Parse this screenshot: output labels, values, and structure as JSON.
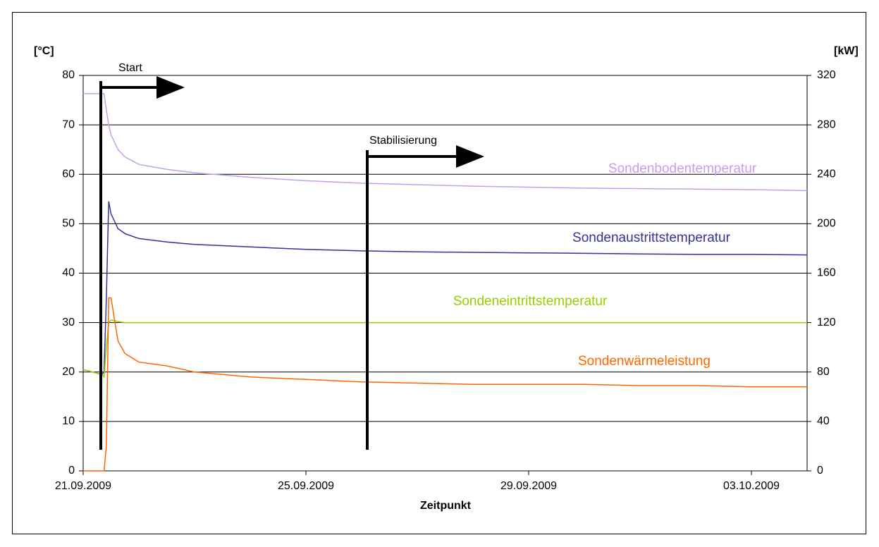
{
  "chart_data": {
    "type": "line",
    "xlabel": "Zeitpunkt",
    "ylabel": "[°C]",
    "y2label": "[kW]",
    "annotations": [
      "Start",
      "Stabilisierung"
    ],
    "x": [
      "2009-09-21T00:00",
      "2009-09-21T08:00",
      "2009-09-21T09:00",
      "2009-09-21T10:00",
      "2009-09-21T11:00",
      "2009-09-21T12:00",
      "2009-09-21T15:00",
      "2009-09-21T18:00",
      "2009-09-22T00:00",
      "2009-09-22T12:00",
      "2009-09-23T00:00",
      "2009-09-24T00:00",
      "2009-09-25T00:00",
      "2009-09-26T00:00",
      "2009-09-27T00:00",
      "2009-09-28T00:00",
      "2009-09-29T00:00",
      "2009-09-30T00:00",
      "2009-10-01T00:00",
      "2009-10-02T00:00",
      "2009-10-03T00:00",
      "2009-10-04T00:00"
    ],
    "series": [
      {
        "name": "Sondenbodentemperatur",
        "color": "#c79ef0",
        "values": [
          76.3,
          76.3,
          76.3,
          73,
          70,
          68,
          65,
          63.5,
          62,
          61,
          60.3,
          59.4,
          58.7,
          58.2,
          57.9,
          57.6,
          57.4,
          57.2,
          57.1,
          57,
          56.9,
          56.7
        ]
      },
      {
        "name": "Sondenaustrittstemperatur",
        "color": "#333399",
        "values": [
          20.5,
          19.5,
          20,
          35,
          54.5,
          52,
          49,
          48,
          47,
          46.3,
          45.8,
          45.3,
          44.8,
          44.5,
          44.3,
          44.2,
          44.1,
          44,
          43.9,
          43.8,
          43.8,
          43.7
        ]
      },
      {
        "name": "Sondeneintrittstemperatur",
        "color": "#99cc00",
        "values": [
          20.5,
          19.5,
          19,
          25,
          30,
          30.5,
          30.2,
          30,
          30,
          30,
          30,
          30,
          30,
          30,
          30,
          30,
          30,
          30,
          30,
          30,
          30,
          30
        ]
      },
      {
        "name": "Sondenwärmeleistung",
        "color": "#ff6600",
        "axis": "y2",
        "values": [
          0,
          0,
          0,
          20,
          140,
          140,
          105,
          95,
          88,
          85,
          80,
          76,
          74,
          72,
          71,
          70,
          70,
          70,
          69,
          69,
          68,
          68
        ]
      }
    ],
    "xlim": [
      "2009-09-21T00:00",
      "2009-10-04T00:00"
    ],
    "xticks": [
      {
        "value": "2009-09-21T00:00",
        "label": "21.09.2009"
      },
      {
        "value": "2009-09-25T00:00",
        "label": "25.09.2009"
      },
      {
        "value": "2009-09-29T00:00",
        "label": "29.09.2009"
      },
      {
        "value": "2009-10-03T00:00",
        "label": "03.10.2009"
      }
    ],
    "ylim": [
      0,
      80
    ],
    "yticks": [
      0,
      10,
      20,
      30,
      40,
      50,
      60,
      70,
      80
    ],
    "y2lim": [
      0,
      320
    ],
    "y2ticks": [
      0,
      40,
      80,
      120,
      160,
      200,
      240,
      280,
      320
    ],
    "grid": true
  }
}
